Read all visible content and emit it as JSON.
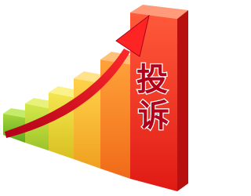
{
  "label": {
    "lines": [
      "投",
      "诉"
    ]
  }
}
